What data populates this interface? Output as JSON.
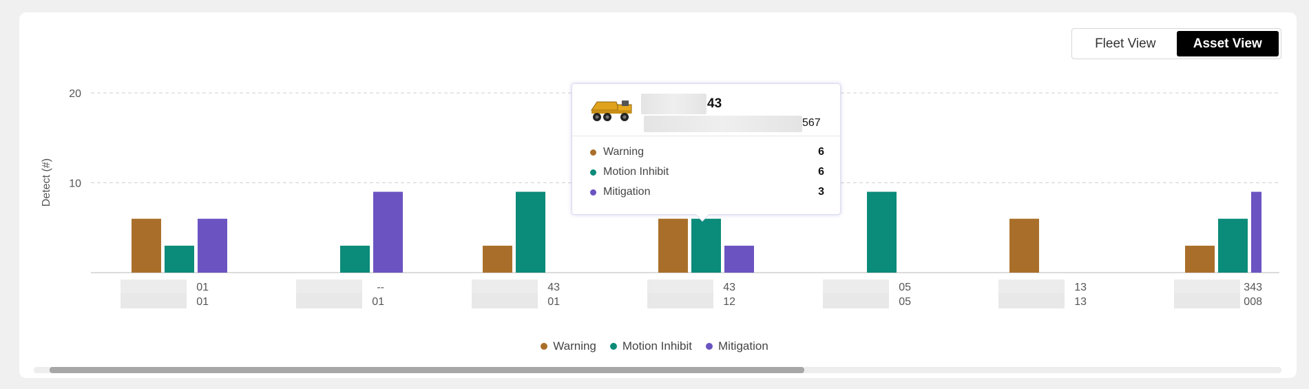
{
  "view_toggle": {
    "fleet_label": "Fleet View",
    "asset_label": "Asset View",
    "active": "Asset View"
  },
  "colors": {
    "warning": "#a96f2a",
    "motion_inhibit": "#0b8b79",
    "mitigation": "#6b53c1"
  },
  "chart_data": {
    "type": "bar",
    "ylabel": "Detect (#)",
    "ylim": [
      0,
      20
    ],
    "yticks": [
      10,
      20
    ],
    "grid": true,
    "legend_position": "bottom",
    "categories": [
      {
        "line1": "01",
        "line2": "01"
      },
      {
        "line1": "--",
        "line2": "01"
      },
      {
        "line1": "43",
        "line2": "01"
      },
      {
        "line1": "43",
        "line2": "12"
      },
      {
        "line1": "05",
        "line2": "05"
      },
      {
        "line1": "13",
        "line2": "13"
      },
      {
        "line1": "343",
        "line2": "008"
      }
    ],
    "series": [
      {
        "name": "Warning",
        "color": "#a96f2a",
        "values": [
          6,
          0,
          3,
          6,
          0,
          6,
          3
        ]
      },
      {
        "name": "Motion Inhibit",
        "color": "#0b8b79",
        "values": [
          3,
          3,
          9,
          6,
          9,
          0,
          6
        ]
      },
      {
        "name": "Mitigation",
        "color": "#6b53c1",
        "values": [
          6,
          9,
          0,
          3,
          0,
          0,
          9
        ]
      }
    ]
  },
  "tooltip": {
    "asset_name_suffix": "43",
    "asset_serial_suffix": "567",
    "rows": [
      {
        "label": "Warning",
        "value": "6",
        "color": "#a96f2a"
      },
      {
        "label": "Motion Inhibit",
        "value": "6",
        "color": "#0b8b79"
      },
      {
        "label": "Mitigation",
        "value": "3",
        "color": "#6b53c1"
      }
    ]
  }
}
